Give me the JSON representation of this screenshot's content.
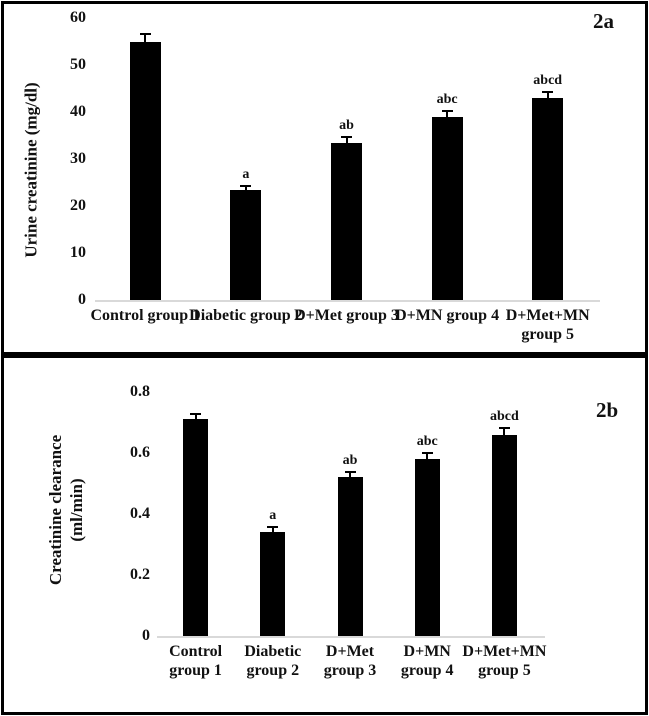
{
  "figure": {
    "background": "#ffffff",
    "border_color": "#000000",
    "panel_tags": [
      "2a",
      "2b"
    ]
  },
  "chart_data": [
    {
      "type": "bar",
      "title": "2a",
      "xlabel": "",
      "ylabel": "Urine creatinine (mg/dl)",
      "ylabel_lines": [
        "Urine creatinine (mg/dl)"
      ],
      "categories": [
        "Control group 1",
        "Diabetic group 2",
        "D+Met group 3",
        "D+MN group 4",
        "D+Met+MN group 5"
      ],
      "values": [
        55,
        23.5,
        33.5,
        39,
        43
      ],
      "errors": [
        1.3,
        0.6,
        0.9,
        0.9,
        1.1
      ],
      "sig_labels": [
        "",
        "a",
        "ab",
        "abc",
        "abcd"
      ],
      "ylim": [
        0,
        60
      ],
      "yticks": [
        0,
        10,
        20,
        30,
        40,
        50,
        60
      ],
      "grid": false,
      "legend": false,
      "bar_color": "#000000",
      "axis_color": "#d9d9d9"
    },
    {
      "type": "bar",
      "title": "2b",
      "xlabel": "",
      "ylabel": "Creatinine clearance (ml/min)",
      "ylabel_lines": [
        "Creatinine clearance",
        "(ml/min)"
      ],
      "categories": [
        "Control group 1",
        "Diabetic group 2",
        "D+Met group 3",
        "D+MN group 4",
        "D+Met+MN group 5"
      ],
      "values": [
        0.71,
        0.34,
        0.52,
        0.58,
        0.66
      ],
      "errors": [
        0.016,
        0.013,
        0.016,
        0.016,
        0.02
      ],
      "sig_labels": [
        "",
        "a",
        "ab",
        "abc",
        "abcd"
      ],
      "ylim": [
        0,
        0.8
      ],
      "yticks": [
        0,
        0.2,
        0.4,
        0.6,
        0.8
      ],
      "grid": false,
      "legend": false,
      "bar_color": "#000000",
      "axis_color": "#d9d9d9"
    }
  ]
}
